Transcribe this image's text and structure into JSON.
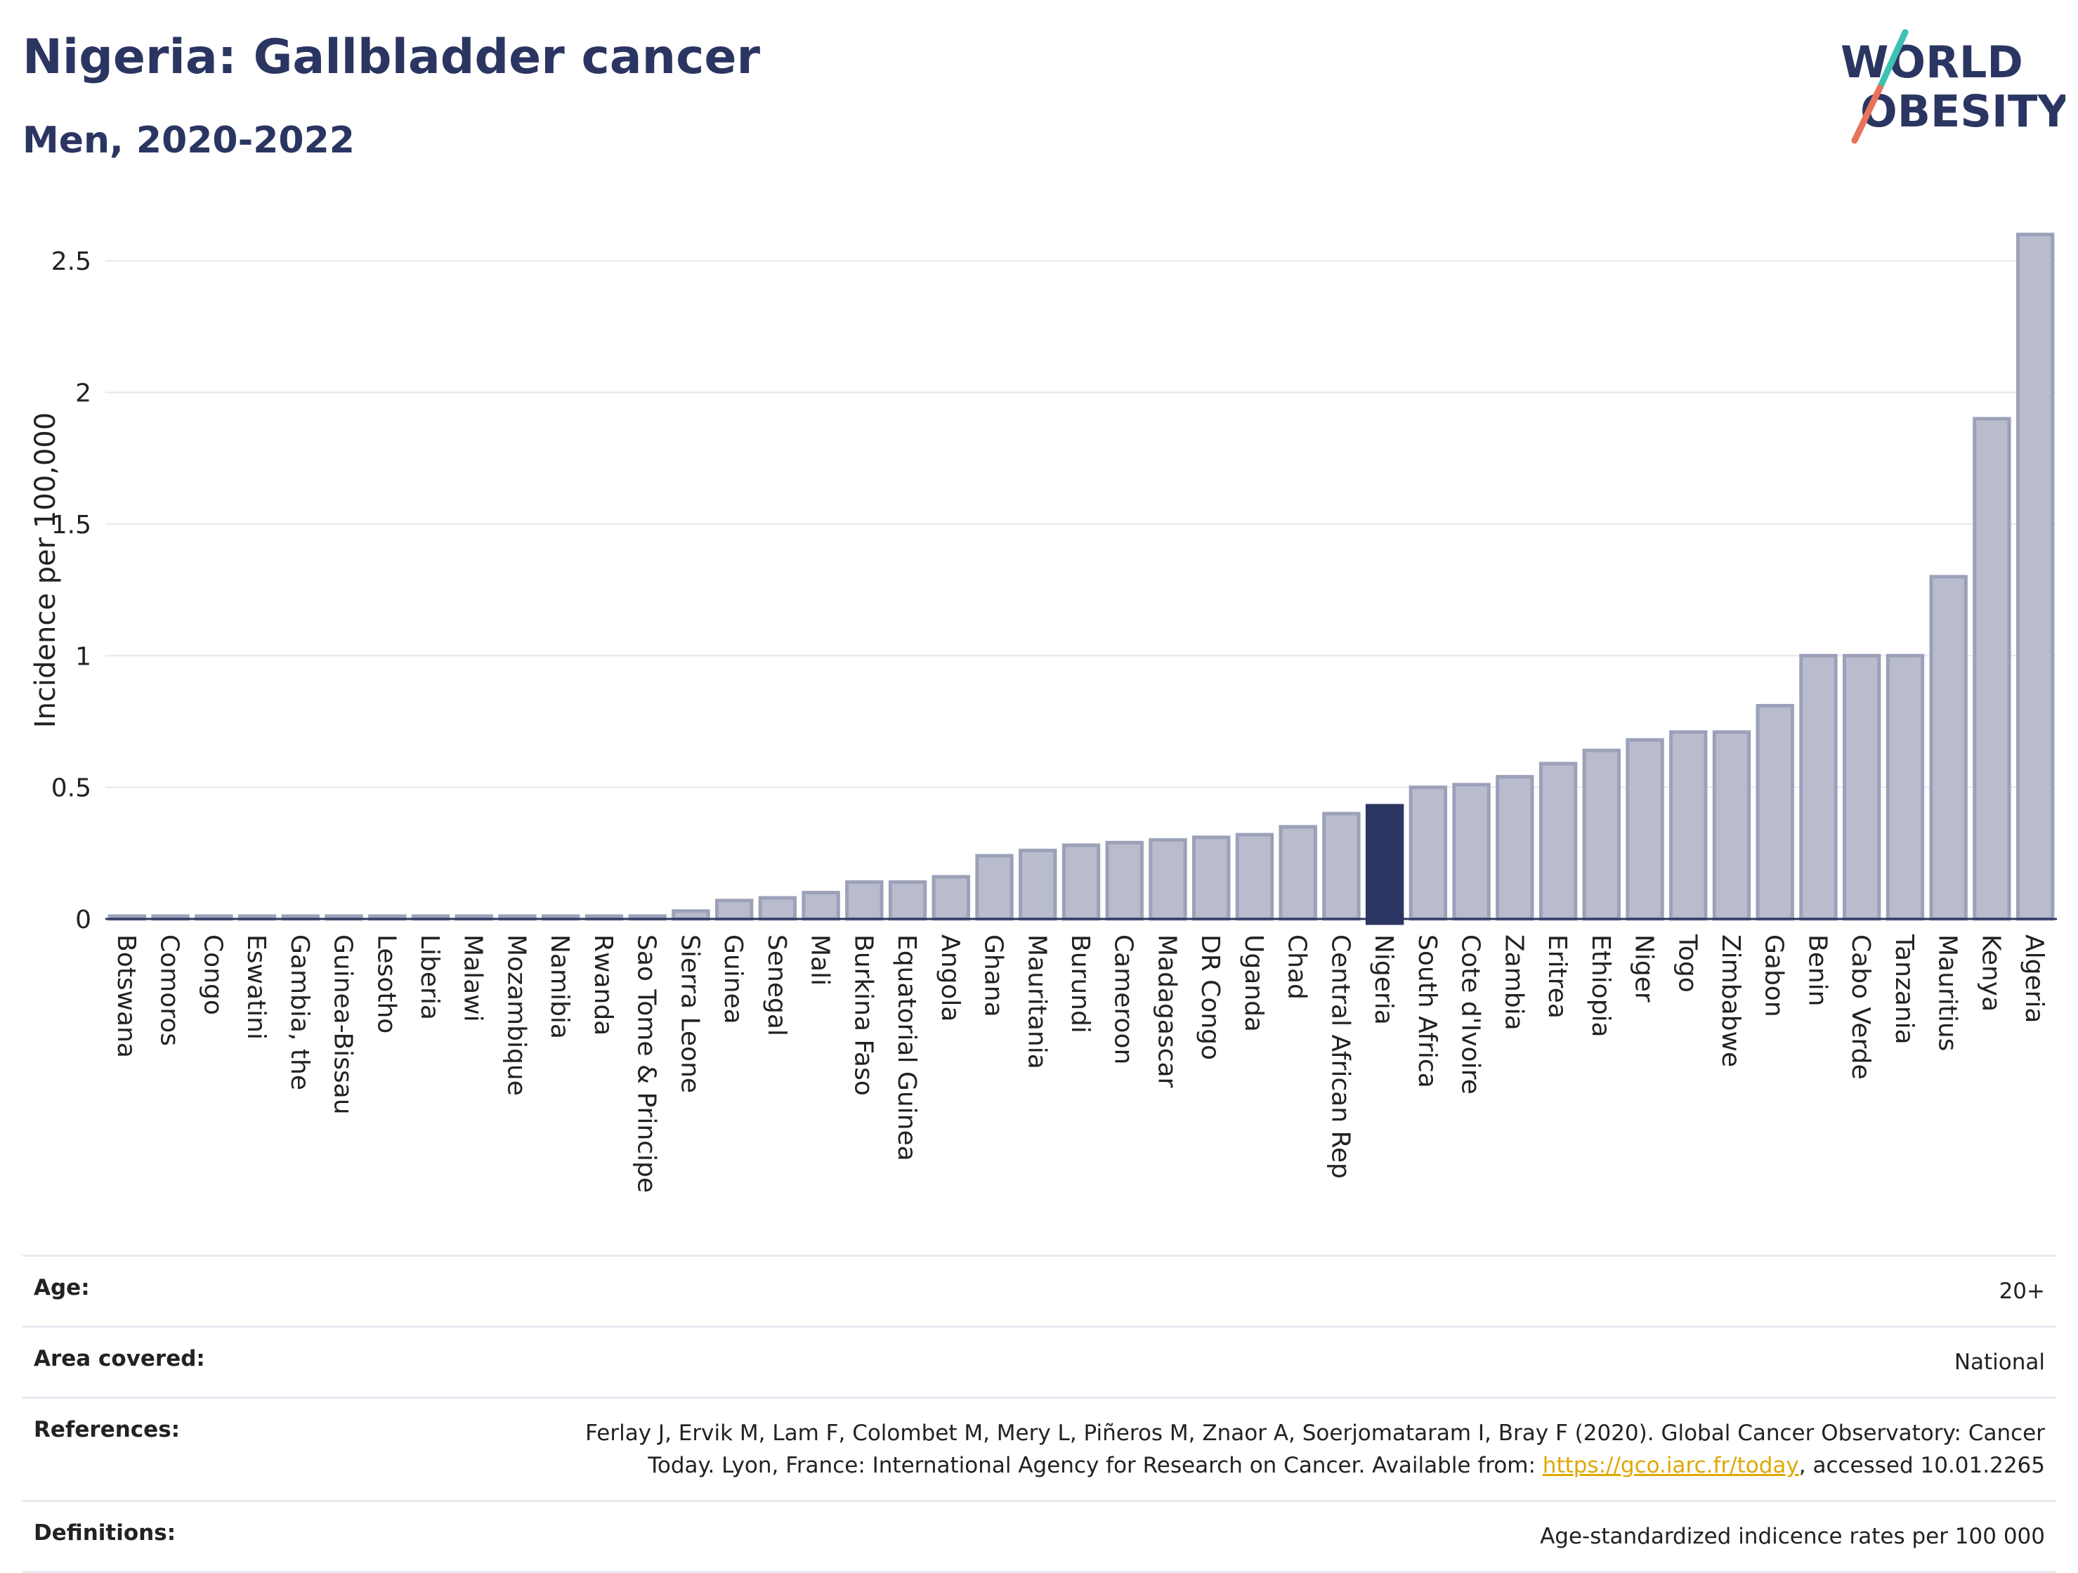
{
  "header": {
    "title": "Nigeria: Gallbladder cancer",
    "subtitle": "Men, 2020-2022"
  },
  "logo": {
    "line1": "WORLD",
    "line2": "OBESITY",
    "colors": {
      "text": "#2b3561",
      "slash_top": "#3ec1b5",
      "slash_bottom": "#e8735a"
    }
  },
  "chart_data": {
    "type": "bar",
    "title": "",
    "xlabel": "",
    "ylabel": "Incidence per 100,000",
    "ylim": [
      0,
      2.65
    ],
    "yticks": [
      0,
      0.5,
      1,
      1.5,
      2,
      2.5
    ],
    "ytick_labels": [
      "0",
      "0.5",
      "1",
      "1.5",
      "2",
      "2.5"
    ],
    "grid": true,
    "highlight": "Nigeria",
    "colors": {
      "bar": "#b8bccd",
      "bar_edge": "#9ca1b9",
      "highlight": "#2b3561"
    },
    "categories": [
      "Botswana",
      "Comoros",
      "Congo",
      "Eswatini",
      "Gambia, the",
      "Guinea-Bissau",
      "Lesotho",
      "Liberia",
      "Malawi",
      "Mozambique",
      "Namibia",
      "Rwanda",
      "Sao Tome & Principe",
      "Sierra Leone",
      "Guinea",
      "Senegal",
      "Mali",
      "Burkina Faso",
      "Equatorial Guinea",
      "Angola",
      "Ghana",
      "Mauritania",
      "Burundi",
      "Cameroon",
      "Madagascar",
      "DR Congo",
      "Uganda",
      "Chad",
      "Central African Rep",
      "Nigeria",
      "South Africa",
      "Cote d'Ivoire",
      "Zambia",
      "Eritrea",
      "Ethiopia",
      "Niger",
      "Togo",
      "Zimbabwe",
      "Gabon",
      "Benin",
      "Cabo Verde",
      "Tanzania",
      "Mauritius",
      "Kenya",
      "Algeria"
    ],
    "values": [
      0,
      0,
      0,
      0,
      0,
      0,
      0,
      0,
      0,
      0,
      0,
      0,
      0,
      0.03,
      0.07,
      0.08,
      0.1,
      0.14,
      0.14,
      0.16,
      0.24,
      0.26,
      0.28,
      0.29,
      0.3,
      0.31,
      0.32,
      0.35,
      0.4,
      0.43,
      0.5,
      0.51,
      0.54,
      0.59,
      0.64,
      0.68,
      0.71,
      0.71,
      0.81,
      1.0,
      1.0,
      1.0,
      1.3,
      1.9,
      2.6
    ]
  },
  "meta": [
    {
      "label": "Age:",
      "value": "20+"
    },
    {
      "label": "Area covered:",
      "value": "National"
    },
    {
      "label": "References:",
      "value_line1": "Ferlay J, Ervik M, Lam F, Colombet M, Mery L, Piñeros M, Znaor A, Soerjomataram I, Bray F (2020). Global Cancer Observatory: Cancer",
      "value_line2_pre": "Today. Lyon, France: International Agency for Research on Cancer. Available from: ",
      "link": "https://gco.iarc.fr/today",
      "value_line2_post": ", accessed 10.01.2265"
    },
    {
      "label": "Definitions:",
      "value": "Age-standardized indicence rates per 100 000"
    }
  ]
}
